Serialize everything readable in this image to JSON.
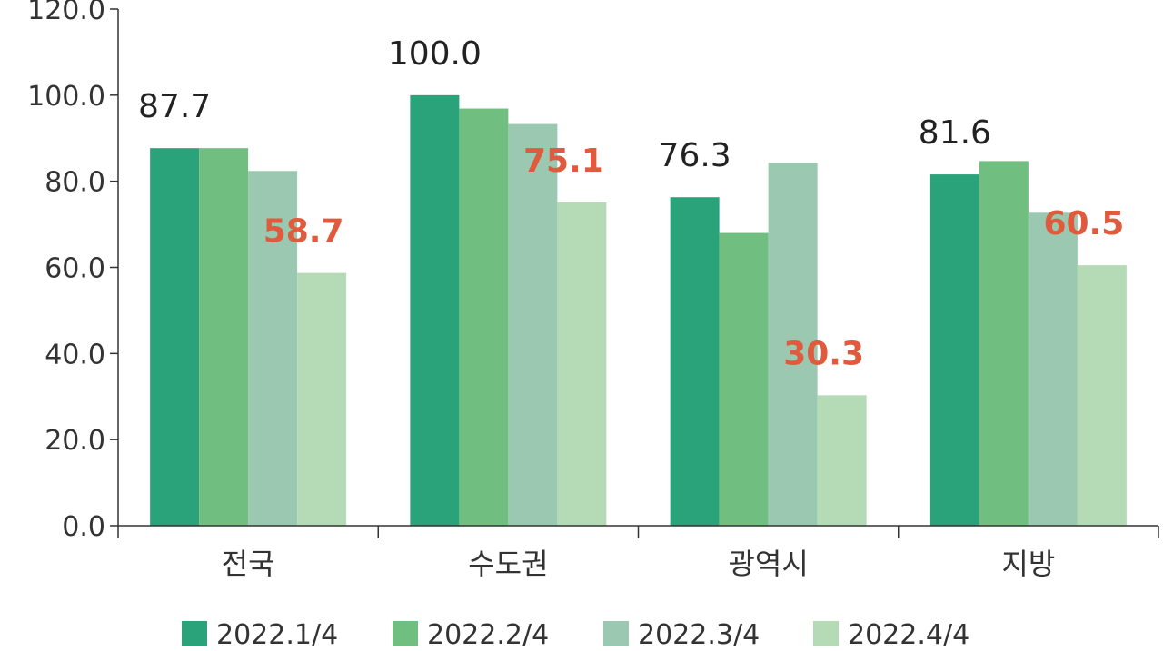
{
  "chart_data": {
    "type": "bar",
    "title": "",
    "xlabel": "",
    "ylabel": "",
    "ylim": [
      0,
      120
    ],
    "yticks": [
      "0.0",
      "20.0",
      "40.0",
      "60.0",
      "80.0",
      "100.0",
      "120.0"
    ],
    "categories": [
      "전국",
      "수도권",
      "광역시",
      "지방"
    ],
    "series": [
      {
        "name": "2022.1/4",
        "color": "#2aa37a",
        "values": [
          87.7,
          100.0,
          76.3,
          81.6
        ]
      },
      {
        "name": "2022.2/4",
        "color": "#70bf80",
        "values": [
          87.7,
          96.9,
          68.0,
          84.7
        ]
      },
      {
        "name": "2022.3/4",
        "color": "#9ac8b0",
        "values": [
          82.4,
          93.3,
          84.3,
          72.7
        ]
      },
      {
        "name": "2022.4/4",
        "color": "#b5dbb6",
        "values": [
          58.7,
          75.1,
          30.3,
          60.5
        ]
      }
    ],
    "data_labels": [
      {
        "category": 0,
        "series": 0,
        "text": "87.7",
        "color": "#222222"
      },
      {
        "category": 0,
        "series": 3,
        "text": "58.7",
        "color": "#e05a3d"
      },
      {
        "category": 1,
        "series": 0,
        "text": "100.0",
        "color": "#222222"
      },
      {
        "category": 1,
        "series": 3,
        "text": "75.1",
        "color": "#e05a3d"
      },
      {
        "category": 2,
        "series": 0,
        "text": "76.3",
        "color": "#222222"
      },
      {
        "category": 2,
        "series": 3,
        "text": "30.3",
        "color": "#e05a3d"
      },
      {
        "category": 3,
        "series": 0,
        "text": "81.6",
        "color": "#222222"
      },
      {
        "category": 3,
        "series": 3,
        "text": "60.5",
        "color": "#e05a3d"
      }
    ],
    "grid": false,
    "legend_position": "bottom"
  }
}
